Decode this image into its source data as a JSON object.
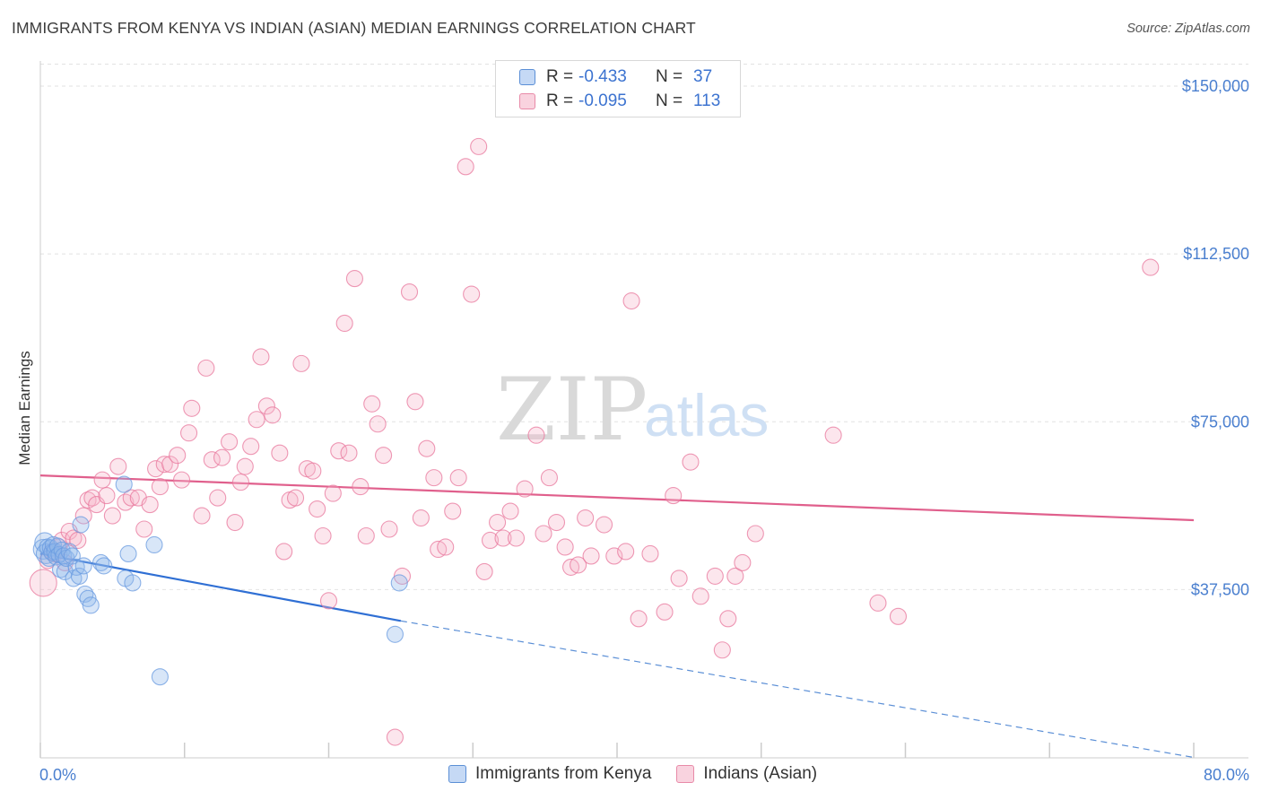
{
  "header": {
    "title": "IMMIGRANTS FROM KENYA VS INDIAN (ASIAN) MEDIAN EARNINGS CORRELATION CHART",
    "source": "Source: ZipAtlas.com"
  },
  "watermark": {
    "zip": "ZIP",
    "atlas": "atlas"
  },
  "legend": {
    "rows": [
      {
        "r_label": "R =",
        "r_value": "-0.433",
        "n_label": "N =",
        "n_value": "37",
        "color": "#8fb6ea",
        "border": "#5b8fd6"
      },
      {
        "r_label": "R =",
        "r_value": "-0.095",
        "n_label": "N =",
        "n_value": "113",
        "color": "#f5b8cb",
        "border": "#e88aa8"
      }
    ]
  },
  "bottom_legend": {
    "items": [
      {
        "label": "Immigrants from Kenya",
        "color": "#c5d9f5",
        "border": "#5b8fd6"
      },
      {
        "label": "Indians (Asian)",
        "color": "#f9d3df",
        "border": "#e88aa8"
      }
    ]
  },
  "chart_data": {
    "type": "scatter",
    "title": "IMMIGRANTS FROM KENYA VS INDIAN (ASIAN) MEDIAN EARNINGS CORRELATION CHART",
    "xlabel": "",
    "ylabel": "Median Earnings",
    "xlim": [
      0,
      80
    ],
    "ylim": [
      0,
      155000
    ],
    "x_tick_labels": [
      "0.0%",
      "80.0%"
    ],
    "y_ticks": [
      37500,
      75000,
      112500,
      150000
    ],
    "y_tick_labels": [
      "$37,500",
      "$75,000",
      "$112,500",
      "$150,000"
    ],
    "grid": true,
    "series": [
      {
        "name": "Immigrants from Kenya",
        "color": "#6a9be0",
        "fill": "rgba(143,182,234,0.35)",
        "trend": {
          "x": [
            0,
            25
          ],
          "y": [
            45500,
            30500
          ],
          "dashed_to": [
            80,
            0
          ]
        },
        "points": [
          [
            0.2,
            46500
          ],
          [
            0.3,
            48000
          ],
          [
            0.4,
            45500
          ],
          [
            0.5,
            47000
          ],
          [
            0.6,
            44500
          ],
          [
            0.7,
            46800
          ],
          [
            0.8,
            45800
          ],
          [
            0.9,
            47500
          ],
          [
            1.0,
            46000
          ],
          [
            1.1,
            44800
          ],
          [
            1.2,
            47200
          ],
          [
            1.3,
            45300
          ],
          [
            1.4,
            42000
          ],
          [
            1.5,
            46300
          ],
          [
            1.6,
            45000
          ],
          [
            1.7,
            41500
          ],
          [
            1.8,
            44500
          ],
          [
            2.0,
            46000
          ],
          [
            2.2,
            45000
          ],
          [
            2.3,
            40000
          ],
          [
            2.5,
            42500
          ],
          [
            2.7,
            40500
          ],
          [
            2.8,
            52000
          ],
          [
            3.0,
            42800
          ],
          [
            3.1,
            36500
          ],
          [
            3.3,
            35500
          ],
          [
            3.5,
            34000
          ],
          [
            4.2,
            43500
          ],
          [
            4.4,
            42800
          ],
          [
            5.8,
            61000
          ],
          [
            5.9,
            40000
          ],
          [
            6.1,
            45500
          ],
          [
            6.4,
            39000
          ],
          [
            7.9,
            47500
          ],
          [
            8.3,
            18000
          ],
          [
            24.6,
            27500
          ],
          [
            24.9,
            39000
          ]
        ]
      },
      {
        "name": "Indians (Asian)",
        "color": "#e8779c",
        "fill": "rgba(245,184,203,0.35)",
        "trend": {
          "x": [
            0,
            80
          ],
          "y": [
            63000,
            53000
          ]
        },
        "points": [
          [
            0.2,
            39000
          ],
          [
            0.5,
            44000
          ],
          [
            0.8,
            46000
          ],
          [
            1.0,
            45500
          ],
          [
            1.3,
            47000
          ],
          [
            1.5,
            48500
          ],
          [
            1.7,
            43500
          ],
          [
            2.0,
            50500
          ],
          [
            2.3,
            49000
          ],
          [
            2.6,
            48500
          ],
          [
            3.0,
            54000
          ],
          [
            3.3,
            57500
          ],
          [
            3.6,
            58000
          ],
          [
            3.9,
            56500
          ],
          [
            4.3,
            62000
          ],
          [
            4.6,
            58500
          ],
          [
            5.0,
            54000
          ],
          [
            5.4,
            65000
          ],
          [
            5.9,
            57000
          ],
          [
            6.3,
            58000
          ],
          [
            6.8,
            58000
          ],
          [
            7.2,
            51000
          ],
          [
            7.6,
            56500
          ],
          [
            8.0,
            64500
          ],
          [
            8.3,
            60500
          ],
          [
            8.6,
            65500
          ],
          [
            9.0,
            65500
          ],
          [
            9.5,
            67500
          ],
          [
            9.8,
            62000
          ],
          [
            10.3,
            72500
          ],
          [
            10.5,
            78000
          ],
          [
            11.2,
            54000
          ],
          [
            11.5,
            87000
          ],
          [
            11.9,
            66500
          ],
          [
            12.3,
            58000
          ],
          [
            12.6,
            67000
          ],
          [
            13.1,
            70500
          ],
          [
            13.5,
            52500
          ],
          [
            13.9,
            61500
          ],
          [
            14.2,
            65000
          ],
          [
            14.6,
            69500
          ],
          [
            15.0,
            75500
          ],
          [
            15.3,
            89500
          ],
          [
            15.7,
            78500
          ],
          [
            16.1,
            76500
          ],
          [
            16.6,
            68000
          ],
          [
            16.9,
            46000
          ],
          [
            17.3,
            57500
          ],
          [
            17.7,
            58000
          ],
          [
            18.1,
            88000
          ],
          [
            18.5,
            64500
          ],
          [
            18.9,
            64000
          ],
          [
            19.2,
            55500
          ],
          [
            19.6,
            49500
          ],
          [
            20.0,
            35000
          ],
          [
            20.3,
            59000
          ],
          [
            20.7,
            68500
          ],
          [
            21.1,
            97000
          ],
          [
            21.4,
            68000
          ],
          [
            21.8,
            107000
          ],
          [
            22.2,
            60500
          ],
          [
            22.6,
            49500
          ],
          [
            23.0,
            79000
          ],
          [
            23.4,
            74500
          ],
          [
            23.8,
            67500
          ],
          [
            24.2,
            51000
          ],
          [
            24.6,
            4500
          ],
          [
            25.1,
            40500
          ],
          [
            25.6,
            104000
          ],
          [
            26.0,
            79500
          ],
          [
            26.4,
            53500
          ],
          [
            26.8,
            69000
          ],
          [
            27.3,
            62500
          ],
          [
            27.6,
            46500
          ],
          [
            28.1,
            47000
          ],
          [
            28.6,
            55000
          ],
          [
            29.0,
            62500
          ],
          [
            29.5,
            132000
          ],
          [
            29.9,
            103500
          ],
          [
            30.4,
            136500
          ],
          [
            30.8,
            41500
          ],
          [
            31.2,
            48500
          ],
          [
            31.7,
            52500
          ],
          [
            32.1,
            49000
          ],
          [
            32.6,
            55000
          ],
          [
            33.0,
            49000
          ],
          [
            33.6,
            60000
          ],
          [
            34.4,
            72000
          ],
          [
            34.9,
            50000
          ],
          [
            35.3,
            62500
          ],
          [
            35.8,
            52500
          ],
          [
            36.4,
            47000
          ],
          [
            36.8,
            42500
          ],
          [
            37.3,
            43000
          ],
          [
            37.8,
            53500
          ],
          [
            38.2,
            45000
          ],
          [
            39.1,
            52000
          ],
          [
            39.8,
            45000
          ],
          [
            40.6,
            46000
          ],
          [
            41.0,
            102000
          ],
          [
            41.5,
            31000
          ],
          [
            42.3,
            45500
          ],
          [
            43.3,
            32500
          ],
          [
            43.9,
            58500
          ],
          [
            44.3,
            40000
          ],
          [
            45.1,
            66000
          ],
          [
            45.8,
            36000
          ],
          [
            46.8,
            40500
          ],
          [
            47.3,
            24000
          ],
          [
            47.7,
            31000
          ],
          [
            48.2,
            40500
          ],
          [
            48.7,
            43500
          ],
          [
            49.6,
            50000
          ],
          [
            55.0,
            72000
          ],
          [
            58.1,
            34500
          ],
          [
            59.5,
            31500
          ],
          [
            77.0,
            109500
          ]
        ]
      }
    ]
  }
}
